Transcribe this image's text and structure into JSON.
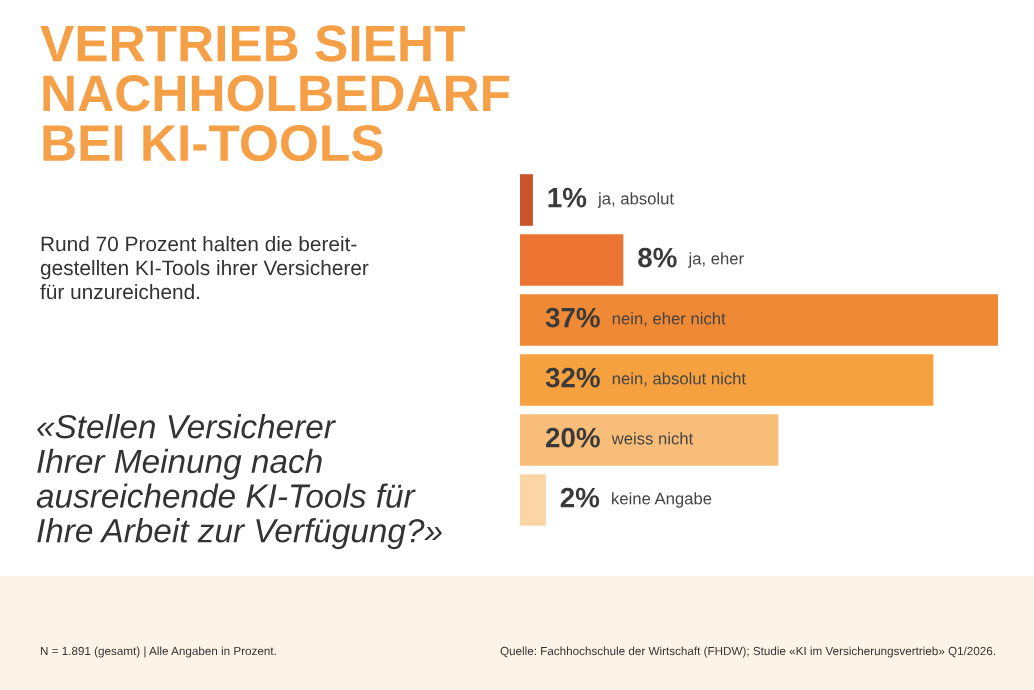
{
  "chart_data": {
    "type": "bar",
    "orientation": "horizontal",
    "title": "VERTRIEB SIEHT\nNACHHOLBEDARF\nBEI KI-TOOLS",
    "subtitle": "Rund 70 Prozent halten die bereit-\ngestellten KI-Tools ihrer Versicherer\nfür unzureichend.",
    "categories": [
      "ja, absolut",
      "ja, eher",
      "nein, eher nicht",
      "nein, absolut nicht",
      "weiss nicht",
      "keine Angabe"
    ],
    "values": [
      1,
      8,
      37,
      32,
      20,
      2
    ],
    "value_labels": [
      "1%",
      "8%",
      "37%",
      "32%",
      "20%",
      "2%"
    ],
    "colors": [
      "#c9532b",
      "#ec7433",
      "#ef8935",
      "#f6a13f",
      "#f9bd7a",
      "#fbd5a6"
    ],
    "annotations": [
      "«Stellen Versicherer\nIhrer Meinung nach\nausreichende KI-Tools für\nIhre Arbeit zur Verfügung?»",
      "N = 1.891 (gesamt) | Alle Angaben in Prozent.",
      "Quelle: Fachhochschule der Wirtschaft (FHDW); Studie «KI im Versicherungsvertrieb» Q1/2026."
    ]
  }
}
